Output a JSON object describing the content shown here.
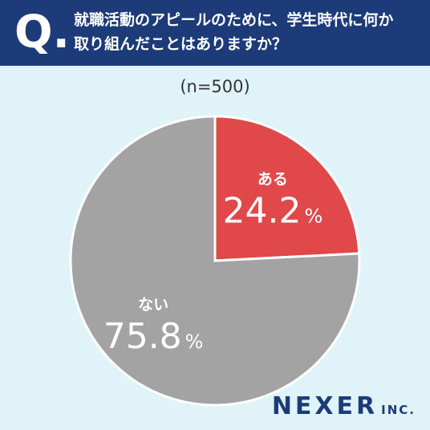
{
  "header": {
    "q_label": "Q.",
    "question_line1": "就職活動のアピールのために、学生時代に何か",
    "question_line2": "取り組んだことはありますか？"
  },
  "sample_size": "(n=500)",
  "brand": {
    "name": "NEXER",
    "suffix": "INC."
  },
  "colors": {
    "aru": "#e0484a",
    "nai": "#a3a3a3",
    "header_bg": "#1c3b78",
    "background": "#dff3f8"
  },
  "chart_data": {
    "type": "pie",
    "title": "",
    "start_angle": "12 o'clock, clockwise",
    "slices": [
      {
        "label": "ある",
        "value": 24.2,
        "value_text": "24.2",
        "unit": "%",
        "color": "#e0484a"
      },
      {
        "label": "ない",
        "value": 75.8,
        "value_text": "75.8",
        "unit": "%",
        "color": "#a3a3a3"
      }
    ]
  }
}
